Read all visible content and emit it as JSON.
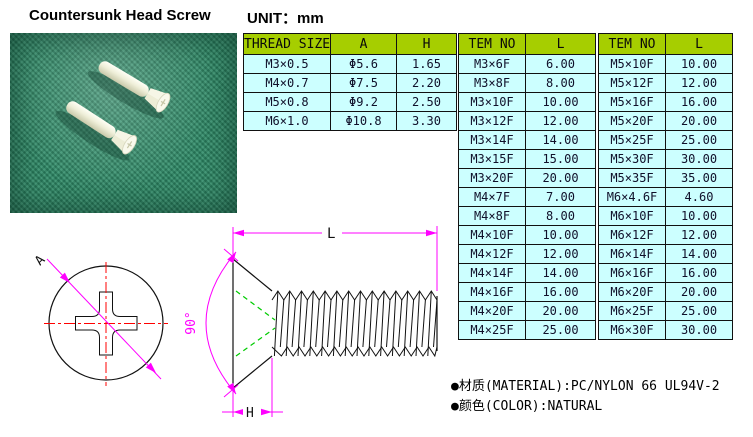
{
  "title": "Countersunk Head Screw",
  "unit_label": "UNIT：mm",
  "spec_table": {
    "headers": [
      "THREAD SIZE",
      "A",
      "H"
    ],
    "rows": [
      [
        "M3×0.5",
        "Φ5.6",
        "1.65"
      ],
      [
        "M4×0.7",
        "Φ7.5",
        "2.20"
      ],
      [
        "M5×0.8",
        "Φ9.2",
        "2.50"
      ],
      [
        "M6×1.0",
        "Φ10.8",
        "3.30"
      ]
    ]
  },
  "item_table_1": {
    "headers": [
      "TEM NO",
      "L"
    ],
    "rows": [
      [
        "M3×6F",
        "6.00"
      ],
      [
        "M3×8F",
        "8.00"
      ],
      [
        "M3×10F",
        "10.00"
      ],
      [
        "M3×12F",
        "12.00"
      ],
      [
        "M3×14F",
        "14.00"
      ],
      [
        "M3×15F",
        "15.00"
      ],
      [
        "M3×20F",
        "20.00"
      ],
      [
        "M4×7F",
        "7.00"
      ],
      [
        "M4×8F",
        "8.00"
      ],
      [
        "M4×10F",
        "10.00"
      ],
      [
        "M4×12F",
        "12.00"
      ],
      [
        "M4×14F",
        "14.00"
      ],
      [
        "M4×16F",
        "16.00"
      ],
      [
        "M4×20F",
        "20.00"
      ],
      [
        "M4×25F",
        "25.00"
      ]
    ]
  },
  "item_table_2": {
    "headers": [
      "TEM NO",
      "L"
    ],
    "rows": [
      [
        "M5×10F",
        "10.00"
      ],
      [
        "M5×12F",
        "12.00"
      ],
      [
        "M5×16F",
        "16.00"
      ],
      [
        "M5×20F",
        "20.00"
      ],
      [
        "M5×25F",
        "25.00"
      ],
      [
        "M5×30F",
        "30.00"
      ],
      [
        "M5×35F",
        "35.00"
      ],
      [
        "M6×4.6F",
        "4.60"
      ],
      [
        "M6×10F",
        "10.00"
      ],
      [
        "M6×12F",
        "12.00"
      ],
      [
        "M6×14F",
        "14.00"
      ],
      [
        "M6×16F",
        "16.00"
      ],
      [
        "M6×20F",
        "20.00"
      ],
      [
        "M6×25F",
        "25.00"
      ],
      [
        "M6×30F",
        "30.00"
      ]
    ]
  },
  "drawing": {
    "labels": {
      "length": "L",
      "head_height": "H",
      "angle": "90°",
      "view": "A"
    }
  },
  "notes": [
    "●材质(MATERIAL):PC/NYLON 66 UL94V-2",
    "●颜色(COLOR):NATURAL"
  ],
  "colors": {
    "header_bg": "#A6CE00",
    "cell_bg": "#CCFFFF",
    "dimension": "#FF00FF",
    "centerline": "#FF0000",
    "hidden_line": "#00CC00"
  }
}
